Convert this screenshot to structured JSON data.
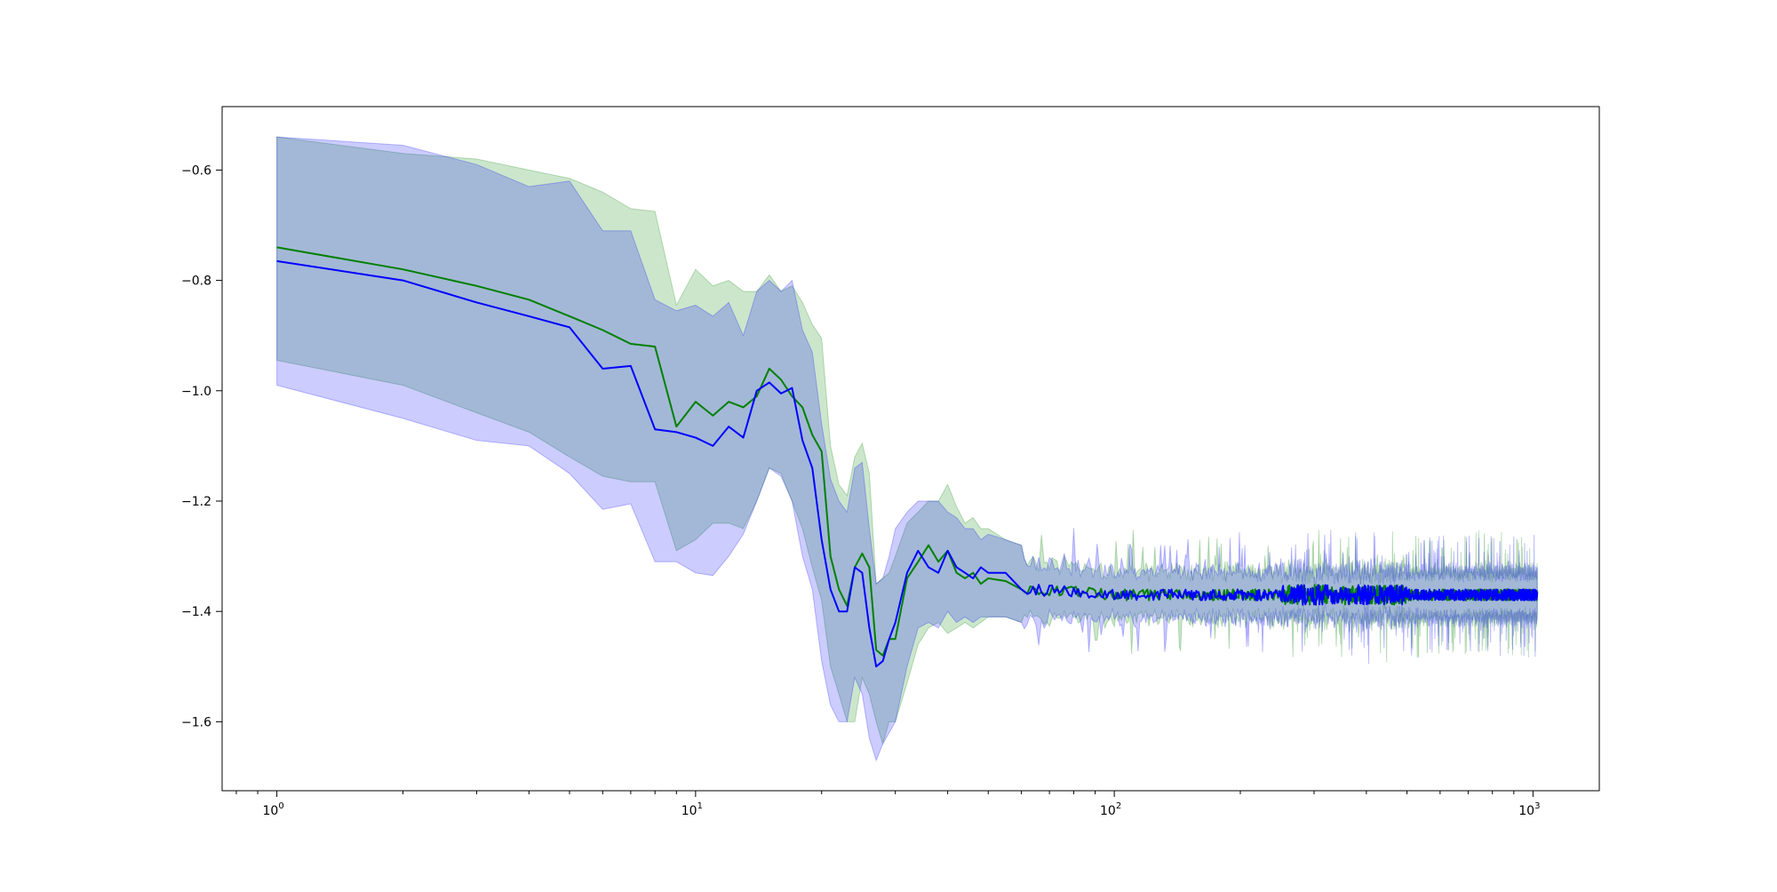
{
  "chart_data": {
    "type": "line",
    "title": "",
    "xlabel": "",
    "ylabel": "",
    "xscale": "log",
    "xlim": [
      0.74,
      1440
    ],
    "ylim": [
      -1.725,
      -0.485
    ],
    "grid": false,
    "x_ticks": [
      {
        "base": "10",
        "exp": "0",
        "value": 1
      },
      {
        "base": "10",
        "exp": "1",
        "value": 10
      },
      {
        "base": "10",
        "exp": "2",
        "value": 100
      },
      {
        "base": "10",
        "exp": "3",
        "value": 1000
      }
    ],
    "y_ticks": [
      {
        "label": "−0.6",
        "value": -0.6
      },
      {
        "label": "−0.8",
        "value": -0.8
      },
      {
        "label": "−1.0",
        "value": -1.0
      },
      {
        "label": "−1.2",
        "value": -1.2
      },
      {
        "label": "−1.4",
        "value": -1.4
      },
      {
        "label": "−1.6",
        "value": -1.6
      }
    ],
    "noise_tail": {
      "from_x": 60,
      "to_x": 1024,
      "center": -1.37,
      "line_amplitude": 0.01,
      "band_halfwidth": 0.045,
      "spike_amplitude": 0.08
    },
    "series": [
      {
        "color": "#008000",
        "band_color": "#008000",
        "band_opacity": 0.2,
        "x": [
          1,
          2,
          3,
          4,
          5,
          6,
          7,
          8,
          9,
          10,
          11,
          12,
          13,
          14,
          15,
          16,
          17,
          18,
          19,
          20,
          21,
          22,
          23,
          24,
          25,
          26,
          27,
          28,
          29,
          30,
          32,
          34,
          36,
          38,
          40,
          42,
          44,
          46,
          48,
          50,
          55,
          60
        ],
        "y": [
          -0.74,
          -0.78,
          -0.81,
          -0.835,
          -0.865,
          -0.89,
          -0.915,
          -0.92,
          -1.065,
          -1.02,
          -1.045,
          -1.02,
          -1.03,
          -1.01,
          -0.96,
          -0.98,
          -1.01,
          -1.03,
          -1.08,
          -1.11,
          -1.3,
          -1.36,
          -1.39,
          -1.32,
          -1.295,
          -1.32,
          -1.47,
          -1.48,
          -1.45,
          -1.45,
          -1.34,
          -1.31,
          -1.28,
          -1.31,
          -1.29,
          -1.33,
          -1.34,
          -1.33,
          -1.35,
          -1.34,
          -1.345,
          -1.36
        ],
        "lower": [
          -0.945,
          -0.99,
          -1.04,
          -1.075,
          -1.12,
          -1.155,
          -1.165,
          -1.165,
          -1.29,
          -1.27,
          -1.24,
          -1.24,
          -1.25,
          -1.2,
          -1.14,
          -1.15,
          -1.2,
          -1.25,
          -1.32,
          -1.38,
          -1.5,
          -1.55,
          -1.6,
          -1.6,
          -1.52,
          -1.55,
          -1.6,
          -1.64,
          -1.6,
          -1.6,
          -1.53,
          -1.46,
          -1.43,
          -1.42,
          -1.44,
          -1.43,
          -1.42,
          -1.43,
          -1.42,
          -1.41,
          -1.41,
          -1.42
        ],
        "upper": [
          -0.54,
          -0.57,
          -0.58,
          -0.6,
          -0.615,
          -0.64,
          -0.67,
          -0.675,
          -0.845,
          -0.78,
          -0.81,
          -0.8,
          -0.82,
          -0.82,
          -0.79,
          -0.82,
          -0.81,
          -0.84,
          -0.88,
          -0.905,
          -1.1,
          -1.17,
          -1.19,
          -1.12,
          -1.095,
          -1.15,
          -1.35,
          -1.34,
          -1.33,
          -1.3,
          -1.24,
          -1.22,
          -1.2,
          -1.2,
          -1.17,
          -1.21,
          -1.24,
          -1.23,
          -1.25,
          -1.25,
          -1.27,
          -1.28
        ]
      },
      {
        "color": "#0000ff",
        "band_color": "#0000ff",
        "band_opacity": 0.2,
        "x": [
          1,
          2,
          3,
          4,
          5,
          6,
          7,
          8,
          9,
          10,
          11,
          12,
          13,
          14,
          15,
          16,
          17,
          18,
          19,
          20,
          21,
          22,
          23,
          24,
          25,
          26,
          27,
          28,
          29,
          30,
          32,
          34,
          36,
          38,
          40,
          42,
          44,
          46,
          48,
          50,
          55,
          60
        ],
        "y": [
          -0.765,
          -0.8,
          -0.84,
          -0.865,
          -0.885,
          -0.96,
          -0.955,
          -1.07,
          -1.075,
          -1.085,
          -1.1,
          -1.065,
          -1.085,
          -1.0,
          -0.985,
          -1.005,
          -0.995,
          -1.09,
          -1.14,
          -1.27,
          -1.36,
          -1.4,
          -1.4,
          -1.32,
          -1.33,
          -1.43,
          -1.5,
          -1.49,
          -1.45,
          -1.42,
          -1.33,
          -1.29,
          -1.32,
          -1.33,
          -1.29,
          -1.32,
          -1.33,
          -1.34,
          -1.32,
          -1.33,
          -1.33,
          -1.36
        ],
        "lower": [
          -0.99,
          -1.05,
          -1.09,
          -1.1,
          -1.15,
          -1.215,
          -1.205,
          -1.31,
          -1.31,
          -1.33,
          -1.335,
          -1.3,
          -1.26,
          -1.2,
          -1.14,
          -1.155,
          -1.2,
          -1.3,
          -1.36,
          -1.49,
          -1.57,
          -1.6,
          -1.6,
          -1.52,
          -1.55,
          -1.63,
          -1.67,
          -1.64,
          -1.62,
          -1.6,
          -1.5,
          -1.43,
          -1.42,
          -1.43,
          -1.4,
          -1.42,
          -1.41,
          -1.42,
          -1.41,
          -1.41,
          -1.41,
          -1.42
        ],
        "upper": [
          -0.54,
          -0.555,
          -0.59,
          -0.63,
          -0.62,
          -0.71,
          -0.71,
          -0.835,
          -0.855,
          -0.845,
          -0.865,
          -0.84,
          -0.9,
          -0.82,
          -0.8,
          -0.82,
          -0.8,
          -0.89,
          -0.93,
          -1.06,
          -1.16,
          -1.2,
          -1.22,
          -1.14,
          -1.13,
          -1.25,
          -1.35,
          -1.34,
          -1.3,
          -1.25,
          -1.22,
          -1.2,
          -1.2,
          -1.2,
          -1.22,
          -1.23,
          -1.25,
          -1.25,
          -1.27,
          -1.26,
          -1.27,
          -1.28
        ]
      }
    ]
  }
}
